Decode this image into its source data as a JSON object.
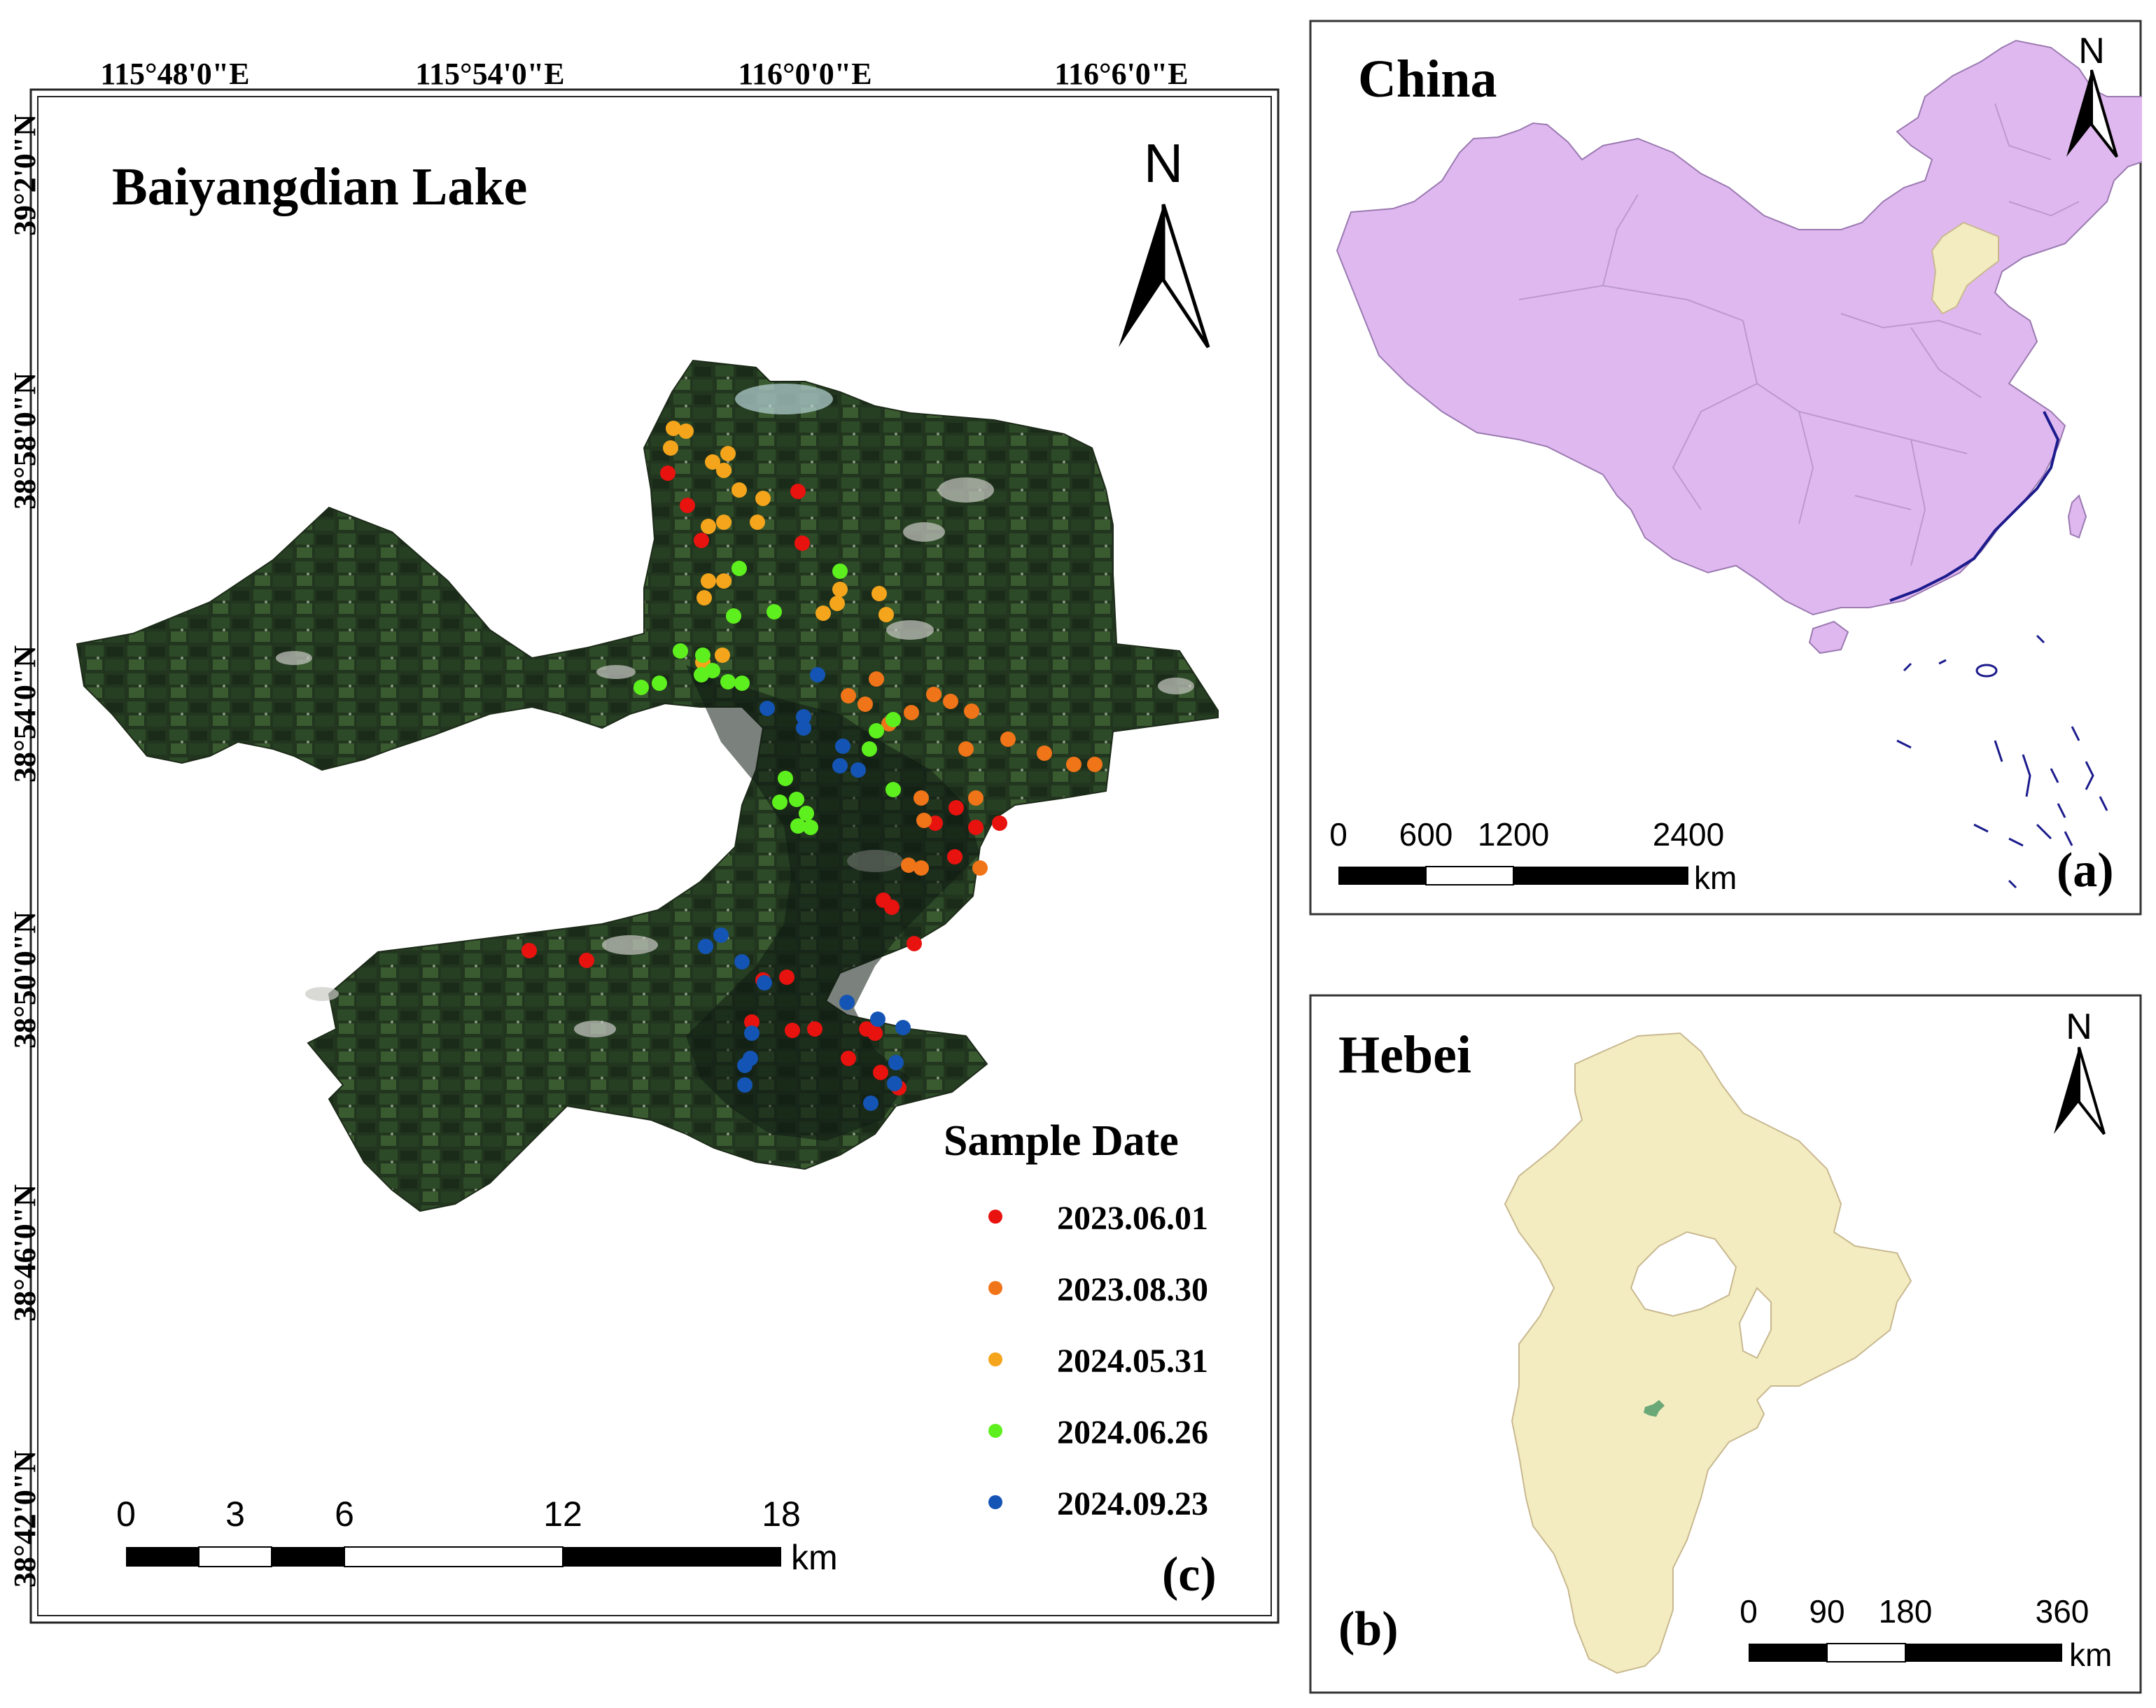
{
  "colors": {
    "date_2023_06_01": "#e8120f",
    "date_2023_08_30": "#f07418",
    "date_2024_05_31": "#f4a51c",
    "date_2024_06_26": "#5ef01e",
    "date_2024_09_23": "#1454b4",
    "china_fill": "#e0b8f0",
    "hebei_fill": "#f3ecc0",
    "lake_green": "#6aa878",
    "coast_line": "#1b1b8c"
  },
  "panel_c": {
    "title": "Baiyangdian Lake",
    "panel_label": "(c)",
    "north_label": "N",
    "north_arrow_icon": "north-arrow-icon",
    "lon_labels": [
      "115°48'0\"E",
      "115°54'0\"E",
      "116°0'0\"E",
      "116°6'0\"E"
    ],
    "lat_labels": [
      "39°2'0\"N",
      "38°58'0\"N",
      "38°54'0\"N",
      "38°50'0\"N",
      "38°46'0\"N",
      "38°42'0\"N"
    ],
    "legend": {
      "title": "Sample Date",
      "items": [
        {
          "label": "2023.06.01",
          "color": "#e8120f"
        },
        {
          "label": "2023.08.30",
          "color": "#f07418"
        },
        {
          "label": "2024.05.31",
          "color": "#f4a51c"
        },
        {
          "label": "2024.06.26",
          "color": "#5ef01e"
        },
        {
          "label": "2024.09.23",
          "color": "#1454b4"
        }
      ]
    },
    "scale": {
      "ticks": [
        "0",
        "3",
        "6",
        "12",
        "18"
      ],
      "unit": "km"
    }
  },
  "panel_a": {
    "title": "China",
    "panel_label": "(a)",
    "north_label": "N",
    "north_arrow_icon": "north-arrow-icon",
    "scale": {
      "ticks": [
        "0",
        "600",
        "1200",
        "2400"
      ],
      "unit": "km"
    }
  },
  "panel_b": {
    "title": "Hebei",
    "panel_label": "(b)",
    "north_label": "N",
    "north_arrow_icon": "north-arrow-icon",
    "scale": {
      "ticks": [
        "0",
        "90",
        "180",
        "360"
      ],
      "unit": "km"
    }
  }
}
